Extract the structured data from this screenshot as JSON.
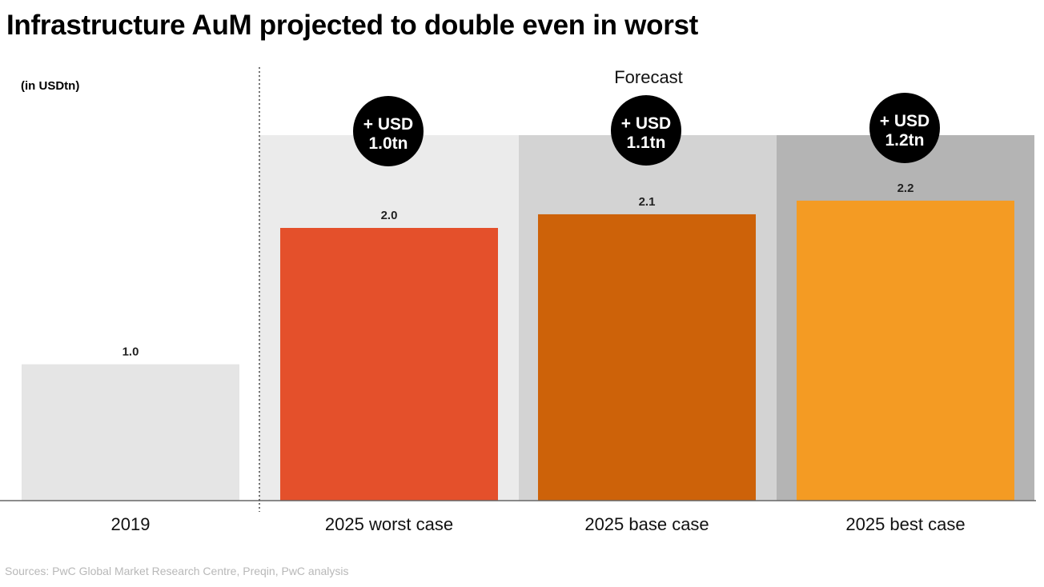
{
  "title": "Infrastructure AuM projected to double even in worst",
  "unit_label": "(in USDtn)",
  "source": "Sources: PwC Global Market Research Centre, Preqin, PwC analysis",
  "colors": {
    "bar_2019": "#e5e5e5",
    "bar_worst": "#e4502b",
    "bar_base": "#cd6209",
    "bar_best": "#f49b23",
    "panel_worst": "#ebebeb",
    "panel_base": "#d3d3d3",
    "panel_best": "#b4b4b4",
    "badge": "#000000",
    "badge_text": "#ffffff"
  },
  "chart_data": {
    "type": "bar",
    "categories": [
      "2019",
      "2025 worst case",
      "2025 base case",
      "2025 best case"
    ],
    "values": [
      1.0,
      2.0,
      2.1,
      2.2
    ],
    "value_labels": [
      "1.0",
      "2.0",
      "2.1",
      "2.2"
    ],
    "ylim": [
      0,
      2.5
    ],
    "forecast_label": "Forecast",
    "forecast_divider_after": "2019",
    "increments": [
      {
        "category": "2025 worst case",
        "line1": "+ USD",
        "line2": "1.0tn"
      },
      {
        "category": "2025 base case",
        "line1": "+ USD",
        "line2": "1.1tn"
      },
      {
        "category": "2025 best case",
        "line1": "+ USD",
        "line2": "1.2tn"
      }
    ],
    "grid": false,
    "legend": "none"
  }
}
